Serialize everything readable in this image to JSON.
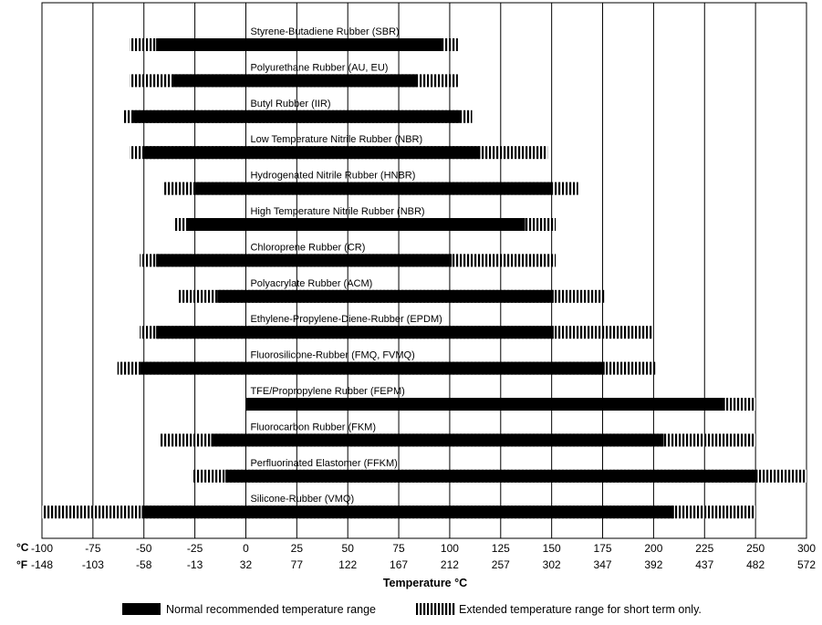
{
  "chart_data": {
    "type": "bar",
    "orientation": "horizontal",
    "subtype": "range",
    "xlabel": "Temperature °C",
    "units": {
      "primary": "°C",
      "secondary": "°F"
    },
    "xlim": [
      -100,
      300
    ],
    "ticks_c": [
      -100,
      -75,
      -50,
      -25,
      0,
      25,
      50,
      75,
      100,
      125,
      150,
      175,
      200,
      225,
      250,
      300
    ],
    "ticks_f": [
      "-148",
      "-103",
      "-58",
      "-13",
      "32",
      "77",
      "122",
      "167",
      "212",
      "257",
      "302",
      "347",
      "392",
      "437",
      "482",
      "572"
    ],
    "grid": true,
    "legend": {
      "placement": "bottom",
      "items": [
        {
          "name": "Normal recommended temperature range",
          "style": "solid"
        },
        {
          "name": "Extended temperature range for short term only.",
          "style": "hatched"
        }
      ]
    },
    "series": [
      {
        "name": "Styrene-Butadiene Rubber (SBR)",
        "extended": [
          -57,
          104
        ],
        "normal": [
          -44,
          96
        ]
      },
      {
        "name": "Polyurethane Rubber (AU, EU)",
        "extended": [
          -57,
          104
        ],
        "normal": [
          -36,
          84
        ]
      },
      {
        "name": "Butyl Rubber (IIR)",
        "extended": [
          -60,
          111
        ],
        "normal": [
          -56,
          105
        ]
      },
      {
        "name": "Low Temperature Nitrile Rubber (NBR)",
        "extended": [
          -57,
          148
        ],
        "normal": [
          -50,
          115
        ]
      },
      {
        "name": "Hydrogenated Nitrile Rubber (HNBR)",
        "extended": [
          -40,
          163
        ],
        "normal": [
          -25,
          150
        ]
      },
      {
        "name": "High Temperature Nitrile Rubber (NBR)",
        "extended": [
          -35,
          152
        ],
        "normal": [
          -29,
          137
        ]
      },
      {
        "name": "Chloroprene Rubber (CR)",
        "extended": [
          -52,
          152
        ],
        "normal": [
          -44,
          101
        ]
      },
      {
        "name": "Polyacrylate Rubber (ACM)",
        "extended": [
          -33,
          176
        ],
        "normal": [
          -14,
          151
        ]
      },
      {
        "name": "Ethylene-Propylene-Diene-Rubber (EPDM)",
        "extended": [
          -52,
          200
        ],
        "normal": [
          -44,
          151
        ]
      },
      {
        "name": "Fluorosilicone-Rubber (FMQ, FVMQ)",
        "extended": [
          -63,
          201
        ],
        "normal": [
          -52,
          176
        ]
      },
      {
        "name": "TFE/Propropylene Rubber (FEPM)",
        "extended": [
          0,
          250
        ],
        "normal": [
          0,
          235
        ]
      },
      {
        "name": "Fluorocarbon Rubber (FKM)",
        "extended": [
          -42,
          250
        ],
        "normal": [
          -17,
          205
        ]
      },
      {
        "name": "Perfluorinated Elastomer (FFKM)",
        "extended": [
          -26,
          300
        ],
        "normal": [
          -10,
          252
        ]
      },
      {
        "name": "Silicone-Rubber (VMQ)",
        "extended": [
          -100,
          250
        ],
        "normal": [
          -51,
          210
        ]
      }
    ]
  }
}
